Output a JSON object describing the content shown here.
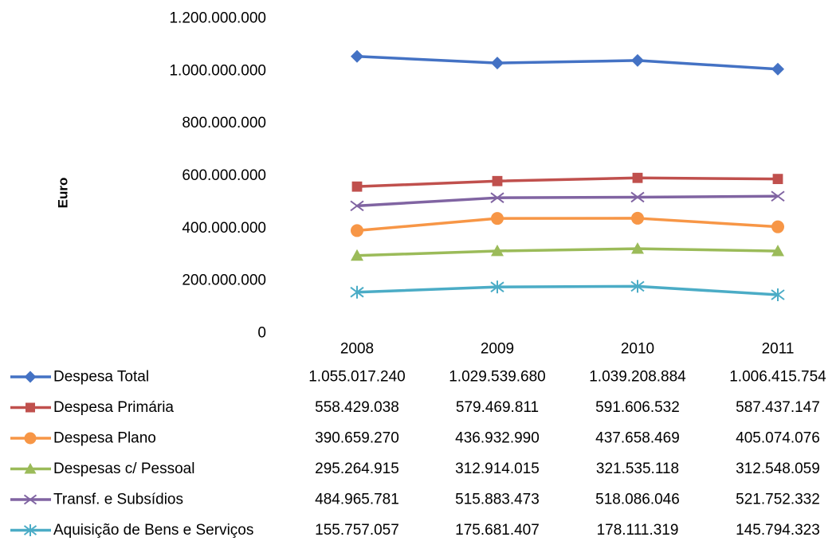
{
  "chart_data": {
    "type": "line",
    "title": "",
    "xlabel": "",
    "ylabel": "Euro",
    "ylim": [
      0,
      1200000000
    ],
    "yticks": [
      0,
      200000000,
      400000000,
      600000000,
      800000000,
      1000000000,
      1200000000
    ],
    "ytick_labels": [
      "0",
      "200.000.000",
      "400.000.000",
      "600.000.000",
      "800.000.000",
      "1.000.000.000",
      "1.200.000.000"
    ],
    "grid": false,
    "legend": "data-table-below",
    "categories": [
      "2008",
      "2009",
      "2010",
      "2011"
    ],
    "series": [
      {
        "name": "Despesa Total",
        "color": "#4472C4",
        "marker": "diamond",
        "values": [
          1055017240,
          1029539680,
          1039208884,
          1006415754
        ],
        "labels": [
          "1.055.017.240",
          "1.029.539.680",
          "1.039.208.884",
          "1.006.415.754"
        ]
      },
      {
        "name": "Despesa Primária",
        "color": "#C0504D",
        "marker": "square",
        "values": [
          558429038,
          579469811,
          591606532,
          587437147
        ],
        "labels": [
          "558.429.038",
          "579.469.811",
          "591.606.532",
          "587.437.147"
        ]
      },
      {
        "name": "Despesa Plano",
        "color": "#F79646",
        "marker": "circle",
        "values": [
          390659270,
          436932990,
          437658469,
          405074076
        ],
        "labels": [
          "390.659.270",
          "436.932.990",
          "437.658.469",
          "405.074.076"
        ]
      },
      {
        "name": "Despesas c/ Pessoal",
        "color": "#9BBB59",
        "marker": "triangle",
        "values": [
          295264915,
          312914015,
          321535118,
          312548059
        ],
        "labels": [
          "295.264.915",
          "312.914.015",
          "321.535.118",
          "312.548.059"
        ]
      },
      {
        "name": "Transf. e Subsídios",
        "color": "#8064A2",
        "marker": "x",
        "values": [
          484965781,
          515883473,
          518086046,
          521752332
        ],
        "labels": [
          "484.965.781",
          "515.883.473",
          "518.086.046",
          "521.752.332"
        ]
      },
      {
        "name": "Aquisição de Bens e Serviços",
        "color": "#4BACC6",
        "marker": "star",
        "values": [
          155757057,
          175681407,
          178111319,
          145794323
        ],
        "labels": [
          "155.757.057",
          "175.681.407",
          "178.111.319",
          "145.794.323"
        ]
      }
    ]
  }
}
